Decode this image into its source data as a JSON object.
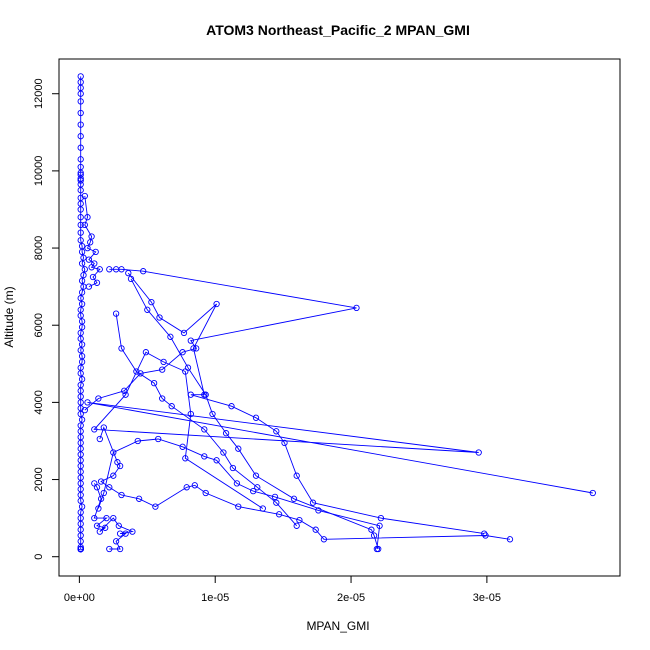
{
  "chart_data": {
    "type": "line",
    "title": "ATOM3 Northeast_Pacific_2 MPAN_GMI",
    "xlabel": "MPAN_GMI",
    "ylabel": "Altitude (m)",
    "xlim": [
      -1.5e-06,
      3.98e-05
    ],
    "ylim": [
      -500,
      12900
    ],
    "x_ticks": [
      0,
      1e-05,
      2e-05,
      3e-05
    ],
    "x_tick_labels": [
      "0e+00",
      "1e-05",
      "2e-05",
      "3e-05"
    ],
    "y_ticks": [
      0,
      2000,
      4000,
      6000,
      8000,
      10000,
      12000
    ],
    "y_tick_labels": [
      "0",
      "2000",
      "4000",
      "6000",
      "8000",
      "10000",
      "12000"
    ],
    "grid": false,
    "legend": "none",
    "series_color": "#0000ff",
    "series": [
      {
        "x": [
          1e-07,
          1e-07,
          1e-07,
          1e-07,
          1e-07,
          1e-07,
          1e-07,
          1e-07,
          1e-07,
          1e-07,
          1e-07,
          1e-07,
          1e-07,
          1e-07,
          1e-07,
          1e-07,
          1e-07,
          1e-07,
          1e-07,
          1e-07,
          1e-07,
          1e-07,
          1e-07,
          1e-07,
          2e-07,
          2e-07,
          3e-07,
          2e-07,
          4e-07,
          3e-07,
          2e-07,
          3e-07,
          2e-07,
          1e-07,
          2e-07,
          1e-07,
          1e-07,
          2e-07,
          2e-07,
          1e-07,
          1e-07,
          2e-07,
          1e-07,
          2e-07,
          2e-07,
          1e-07,
          1e-07,
          2e-07,
          1e-07,
          1e-07,
          1e-07,
          1e-07,
          1e-07,
          1e-07,
          2e-07,
          1e-07,
          1e-07,
          1e-07,
          1e-07,
          1e-07,
          1e-07,
          1e-07,
          1e-07,
          1e-07,
          1e-07,
          1e-07,
          1e-07,
          1e-07,
          1e-07,
          2e-07,
          1e-07,
          1e-07,
          1e-07,
          1e-07,
          1e-07,
          1e-07,
          1e-07,
          1e-07,
          1e-07,
          1e-07,
          1e-07,
          1e-07,
          1e-07,
          1e-07,
          1e-07,
          1e-07,
          1e-07,
          1e-07,
          1e-07,
          1e-07,
          1e-07,
          1e-07,
          1e-07,
          1e-07,
          1e-07,
          1e-07,
          1e-07,
          1e-07,
          1e-07,
          1e-07,
          1e-07
        ],
        "y": [
          12450,
          12300,
          12150,
          12000,
          11800,
          11500,
          11200,
          10900,
          10600,
          10300,
          10100,
          9950,
          9900,
          9800,
          9750,
          9650,
          9500,
          9300,
          9150,
          9000,
          8800,
          8600,
          8400,
          8200,
          8050,
          7900,
          7750,
          7600,
          7450,
          7300,
          7150,
          7000,
          6850,
          6700,
          6550,
          6400,
          6250,
          6100,
          5950,
          5800,
          5650,
          5500,
          5350,
          5200,
          5050,
          4900,
          4750,
          4600,
          4450,
          4300,
          4150,
          4000,
          3850,
          3700,
          3550,
          3400,
          3250,
          3100,
          2950,
          2800,
          2650,
          2500,
          2350,
          2200,
          2050,
          1900,
          1750,
          1600,
          1450,
          1300,
          1150,
          1000,
          850,
          700,
          550,
          400,
          250,
          200,
          200,
          200,
          200,
          200,
          200,
          200,
          200,
          200,
          200,
          200,
          200,
          200,
          200,
          200,
          200,
          200,
          200,
          200,
          200,
          200,
          200,
          200,
          200
        ]
      },
      {
        "x": [
          4e-07,
          6e-07,
          4e-07,
          9e-07,
          8e-07,
          6e-07,
          1.2e-06,
          7e-07,
          1.1e-06,
          9e-07,
          1.5e-06,
          1e-06,
          1.3e-06,
          7e-07
        ],
        "y": [
          9350,
          8800,
          8600,
          8300,
          8150,
          8000,
          7900,
          7700,
          7600,
          7500,
          7450,
          7250,
          7100,
          7000
        ]
      },
      {
        "x": [
          2.2e-06,
          2.7e-06,
          3.1e-06,
          4.7e-06,
          2.04e-05,
          8.2e-06,
          8.6e-06,
          7.6e-06,
          6.1e-06,
          4.5e-06,
          3.3e-06,
          1.4e-06,
          4e-07
        ],
        "y": [
          7450,
          7450,
          7450,
          7400,
          6450,
          5600,
          5400,
          5300,
          4850,
          4750,
          4300,
          4100,
          3800
        ]
      },
      {
        "x": [
          3.6e-06,
          5.3e-06,
          5.9e-06,
          7.7e-06,
          1.01e-05,
          8.4e-06,
          9.2e-06,
          8.2e-06,
          1.12e-05,
          1.3e-05,
          1.45e-05,
          1.51e-05,
          1.6e-05,
          1.72e-05,
          2.22e-05,
          2.98e-05
        ],
        "y": [
          7350,
          6600,
          6200,
          5800,
          6550,
          5400,
          4200,
          4200,
          3900,
          3600,
          3250,
          2950,
          2100,
          1400,
          1000,
          600
        ]
      },
      {
        "x": [
          3.8e-06,
          5e-06,
          6.7e-06,
          8e-06,
          9.3e-06,
          9.8e-06,
          1.08e-05,
          1.17e-05,
          1.3e-05,
          1.58e-05,
          2.15e-05,
          2.17e-05,
          2.2e-05
        ],
        "y": [
          7200,
          6400,
          5700,
          4900,
          4200,
          3700,
          3200,
          2800,
          2100,
          1500,
          700,
          550,
          200
        ]
      },
      {
        "x": [
          2.7e-06,
          3.1e-06,
          4.2e-06,
          5.5e-06,
          6.1e-06,
          6.8e-06,
          9.2e-06,
          1.06e-05,
          1.13e-05,
          1.31e-05,
          1.45e-05,
          1.6e-05
        ],
        "y": [
          6300,
          5400,
          4800,
          4500,
          4100,
          3900,
          3300,
          2700,
          2300,
          1800,
          1400,
          800
        ]
      },
      {
        "x": [
          3.78e-05,
          6e-07,
          2.94e-05,
          1.1e-06,
          3.4e-06,
          4.9e-06,
          6.2e-06,
          7.8e-06,
          8.2e-06,
          7.8e-06,
          1.35e-05
        ],
        "y": [
          1650,
          4000,
          2700,
          3300,
          4200,
          5300,
          5050,
          4800,
          3700,
          2550,
          1250
        ]
      },
      {
        "x": [
          1.5e-06,
          1.8e-06,
          2.8e-06,
          3e-06,
          2.5e-06,
          1.6e-06,
          2.2e-06,
          3.1e-06,
          4.4e-06,
          5.6e-06,
          7.9e-06,
          8.5e-06,
          9.3e-06,
          1.17e-05,
          1.47e-05,
          1.62e-05,
          1.74e-05,
          1.8e-05,
          2.99e-05,
          3.17e-05
        ],
        "y": [
          3050,
          3350,
          2450,
          2350,
          2100,
          1950,
          1800,
          1600,
          1500,
          1300,
          1800,
          1850,
          1650,
          1300,
          1100,
          950,
          700,
          450,
          550,
          450
        ]
      },
      {
        "x": [
          1.1e-06,
          1.3e-06,
          1.6e-06,
          1.1e-06,
          2e-06,
          1.3e-06,
          1.9e-06,
          1.5e-06,
          2.5e-06,
          2.9e-06,
          3.9e-06,
          3e-06,
          3.4e-06,
          2.7e-06,
          3e-06,
          2.2e-06
        ],
        "y": [
          1900,
          1800,
          1500,
          1000,
          1000,
          800,
          750,
          650,
          1000,
          800,
          650,
          600,
          600,
          400,
          200,
          200
        ]
      },
      {
        "x": [
          1.4e-06,
          1.8e-06,
          2.5e-06,
          4.3e-06,
          5.8e-06,
          7.6e-06,
          9.2e-06,
          1.01e-05,
          1.16e-05,
          1.28e-05,
          1.44e-05,
          1.76e-05,
          2.21e-05,
          2.19e-05
        ],
        "y": [
          1250,
          1650,
          2700,
          3000,
          3050,
          2850,
          2600,
          2500,
          1900,
          1700,
          1550,
          1200,
          800,
          200
        ]
      }
    ]
  }
}
